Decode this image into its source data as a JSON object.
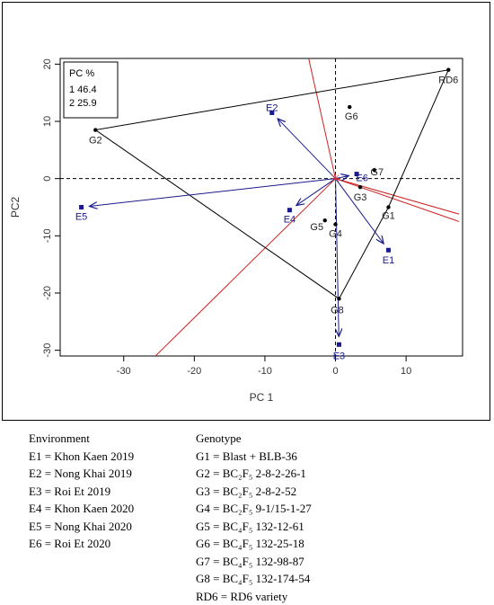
{
  "chart_data": {
    "type": "scatter",
    "title": "",
    "xlabel": "PC 1",
    "ylabel": "PC2",
    "xlim": [
      -39,
      18
    ],
    "ylim": [
      -31,
      21
    ],
    "x_ticks": [
      "-30",
      "-20",
      "-10",
      "0",
      "10"
    ],
    "y_ticks": [
      "-30",
      "-20",
      "-10",
      "0",
      "10",
      "20"
    ],
    "x_tick_values": [
      -30,
      -20,
      -10,
      0,
      10
    ],
    "y_tick_values": [
      -30,
      -20,
      -10,
      0,
      10,
      20
    ],
    "pc_table": {
      "header": "PC  %",
      "rows": [
        "1  46.4",
        "2  25.9"
      ]
    },
    "genotypes": [
      {
        "label": "G1",
        "x": 7.5,
        "y": -5.0
      },
      {
        "label": "G2",
        "x": -34.0,
        "y": 8.5
      },
      {
        "label": "G3",
        "x": 3.5,
        "y": -1.5
      },
      {
        "label": "G4",
        "x": 0.0,
        "y": -8.0
      },
      {
        "label": "G5",
        "x": -1.5,
        "y": -7.3
      },
      {
        "label": "G6",
        "x": 2.0,
        "y": 12.5
      },
      {
        "label": "G7",
        "x": 5.5,
        "y": 1.5
      },
      {
        "label": "G8",
        "x": 0.5,
        "y": -21.0
      },
      {
        "label": "RD6",
        "x": 16.0,
        "y": 19.0
      }
    ],
    "environments": [
      {
        "label": "E1",
        "x": 7.5,
        "y": -12.5
      },
      {
        "label": "E2",
        "x": -9.0,
        "y": 11.5
      },
      {
        "label": "E3",
        "x": 0.5,
        "y": -29.0
      },
      {
        "label": "E4",
        "x": -6.5,
        "y": -5.5
      },
      {
        "label": "E5",
        "x": -36.0,
        "y": -5.0
      },
      {
        "label": "E6",
        "x": 3.0,
        "y": 0.8
      }
    ],
    "hull": [
      "RD6",
      "G1",
      "G8",
      "G2"
    ],
    "sector_lines": [
      [
        17.5,
        -6.2
      ],
      [
        17.5,
        -7.5
      ],
      [
        -3.8,
        21
      ],
      [
        -25.5,
        -31
      ]
    ],
    "colors": {
      "genotype": "#000000",
      "environment": "#1a1a8c",
      "sector": "#cc2222",
      "hull": "#000000",
      "origin": "#e03030"
    }
  },
  "captions": {
    "environment_title": "Environment",
    "environments": [
      "E1 = Khon Kaen 2019",
      "E2 = Nong Khai 2019",
      "E3 = Roi Et 2019",
      "E4 = Khon Kaen 2020",
      "E5 = Nong Khai 2020",
      "E6 = Roi Et 2020"
    ],
    "genotype_title": "Genotype",
    "genotypes": [
      "G1 = Blast + BLB-36",
      "G2 = BC₂F₅ 2-8-2-26-1",
      "G3 = BC₂F₅ 2-8-2-52",
      "G4 = BC₂F₅ 9-1/15-1-27",
      "G5 = BC₄F₅ 132-12-61",
      "G6 = BC₄F₅ 132-25-18",
      "G7 = BC₄F₅ 132-98-87",
      "G8 = BC₄F₅ 132-174-54",
      "RD6 = RD6 variety"
    ]
  }
}
